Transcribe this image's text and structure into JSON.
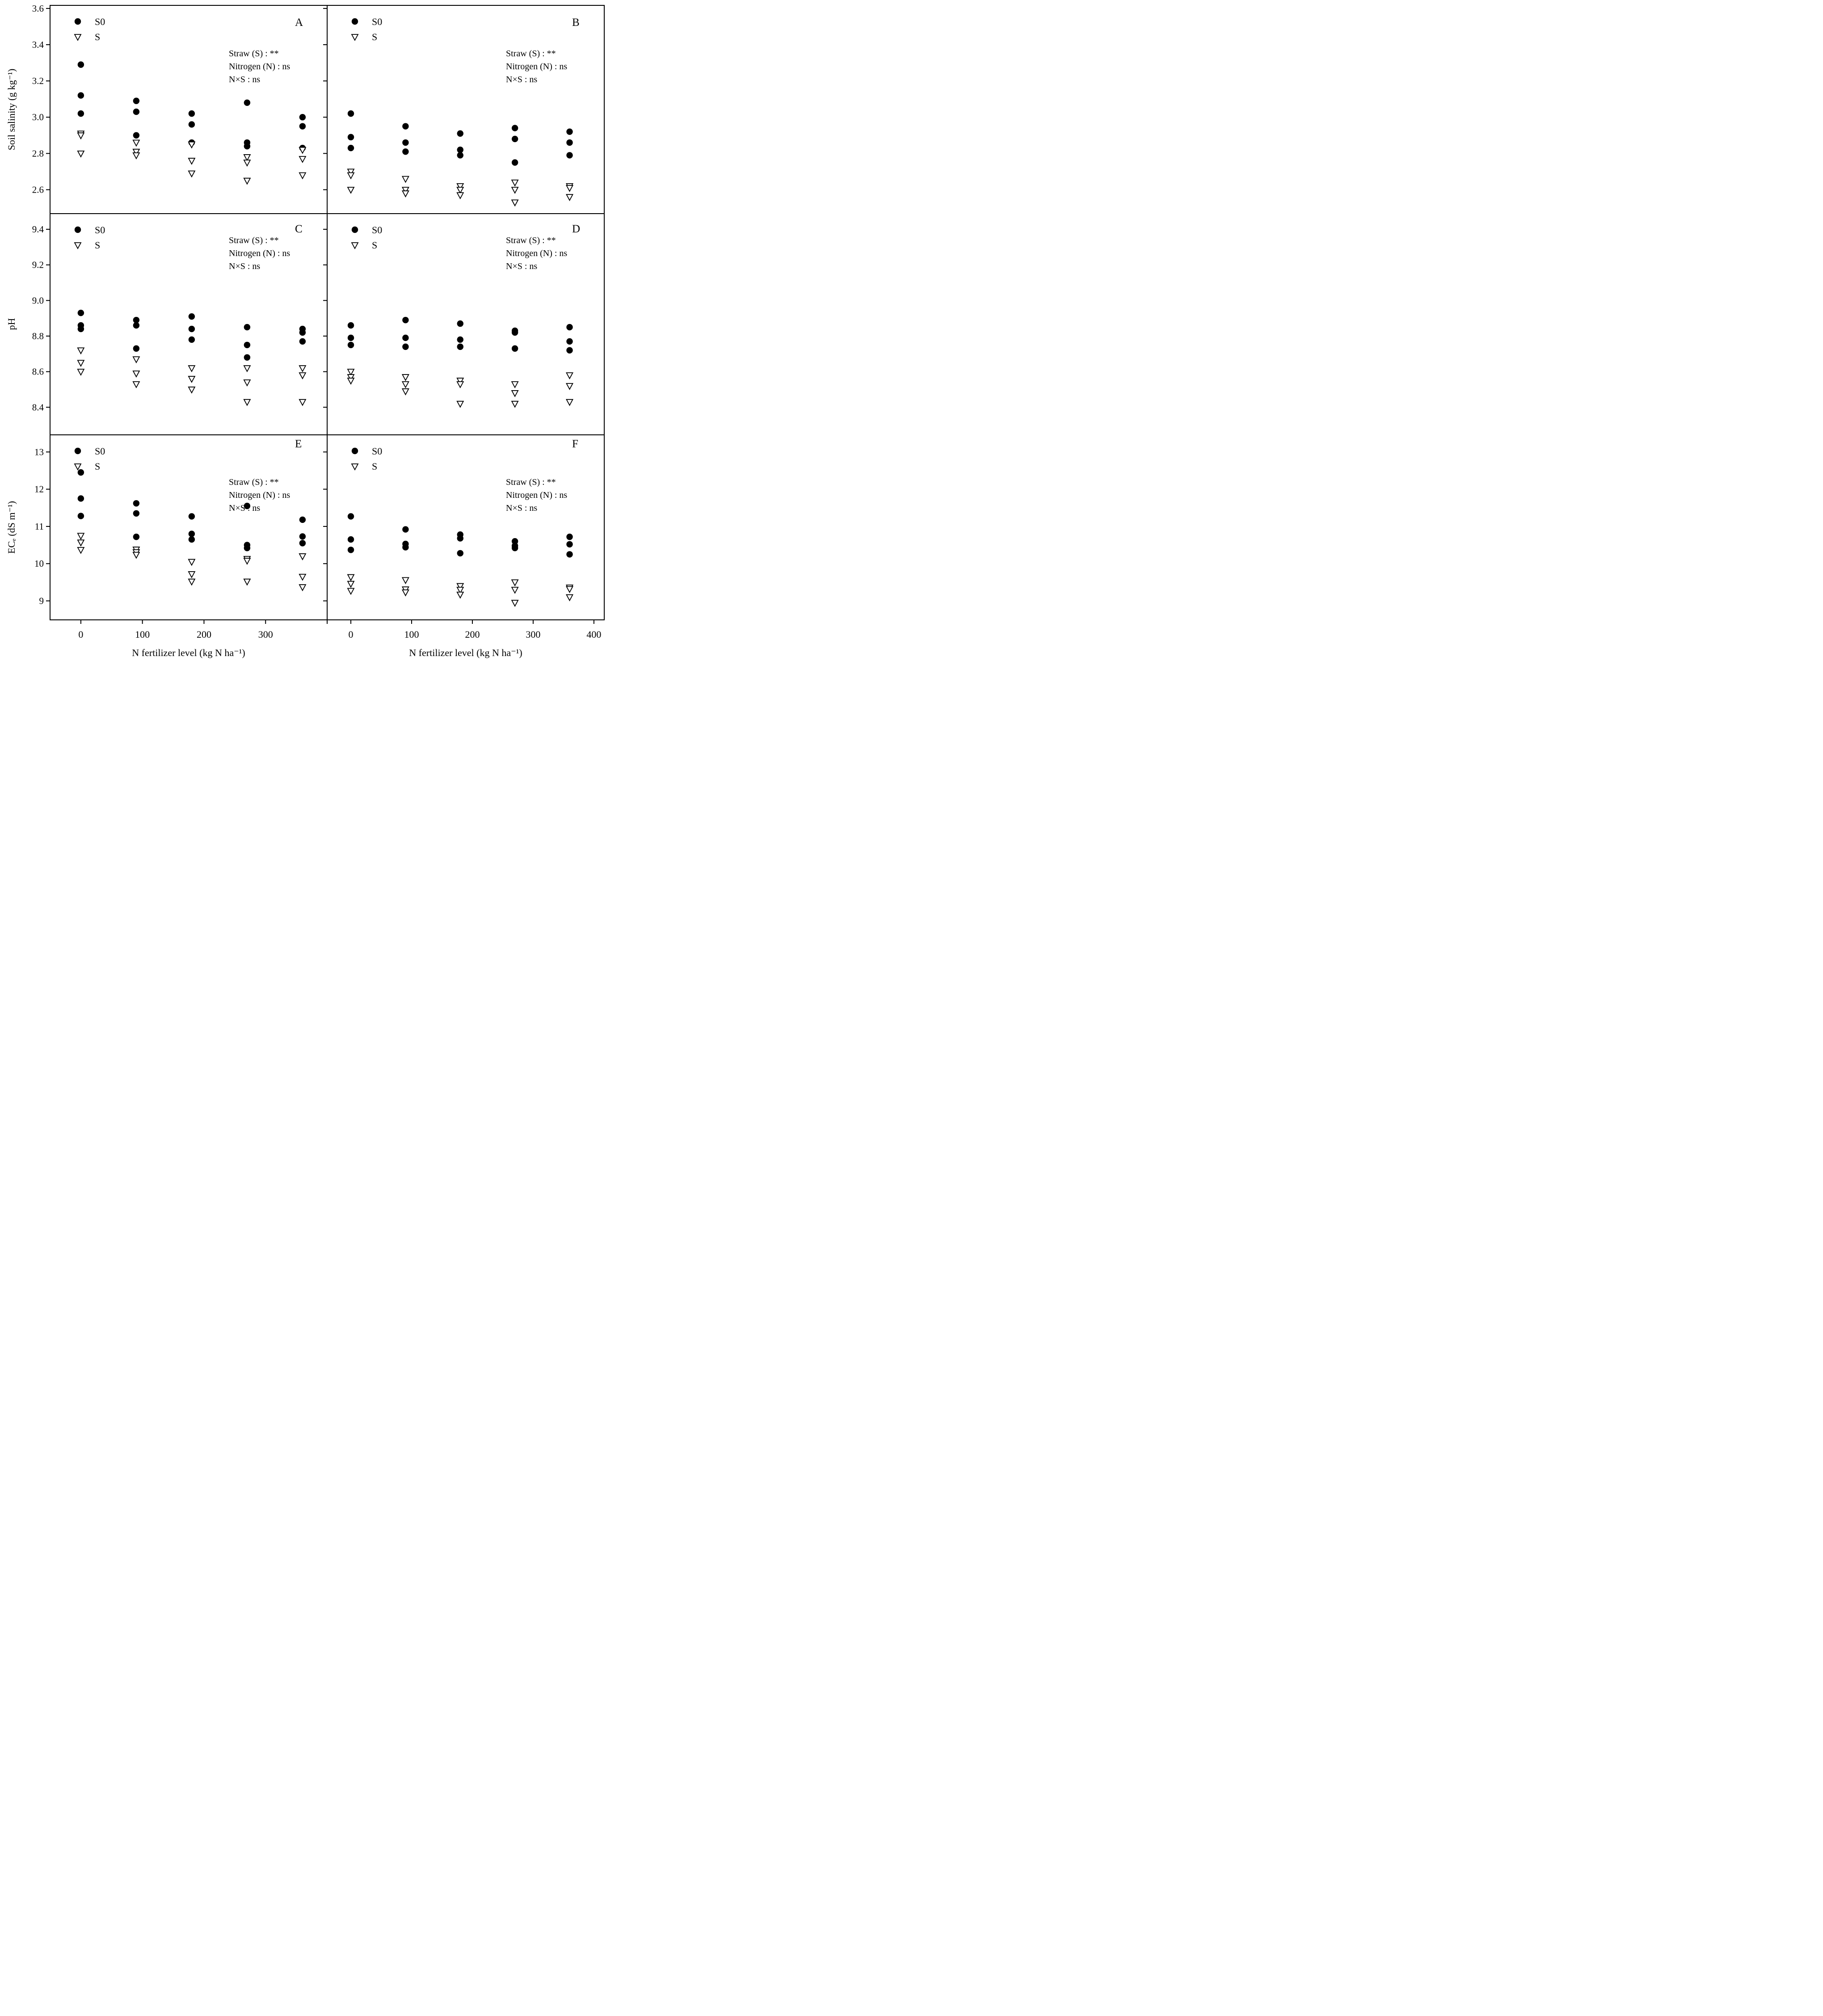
{
  "x_title": "N fertilizer level (kg N ha⁻¹)",
  "legend": {
    "s0_label": "S0",
    "s_label": "S"
  },
  "annotation_lines": [
    "Straw (S) : **",
    "Nitrogen (N) : ns",
    "N×S : ns"
  ],
  "chart_data": [
    {
      "type": "scatter",
      "panel": "A",
      "ylabel": "Soil salinity (g kg⁻¹)",
      "ylim": [
        2.468,
        3.617
      ],
      "yticks": [
        {
          "v": 3.6,
          "label": "3.6"
        },
        {
          "v": 3.4,
          "label": "3.4"
        },
        {
          "v": 3.2,
          "label": "3.2"
        },
        {
          "v": 3.0,
          "label": "3.0"
        },
        {
          "v": 2.8,
          "label": "2.8"
        },
        {
          "v": 2.6,
          "label": "2.6"
        }
      ],
      "xticks": [
        {
          "v": 0,
          "label": "0"
        },
        {
          "v": 100,
          "label": "100"
        },
        {
          "v": 200,
          "label": "200"
        },
        {
          "v": 300,
          "label": "300"
        },
        {
          "v": 400,
          "label": ""
        }
      ],
      "annotations": [
        "Straw (S) : **",
        "Nitrogen (N) : ns",
        "N×S : ns"
      ],
      "series": [
        {
          "name": "S0",
          "marker": "filled-circle",
          "points": [
            [
              0,
              3.29
            ],
            [
              0,
              3.12
            ],
            [
              0,
              3.02
            ],
            [
              90,
              3.09
            ],
            [
              90,
              3.03
            ],
            [
              90,
              2.9
            ],
            [
              180,
              3.02
            ],
            [
              180,
              2.96
            ],
            [
              180,
              2.86
            ],
            [
              270,
              3.08
            ],
            [
              270,
              2.86
            ],
            [
              270,
              2.84
            ],
            [
              360,
              3.0
            ],
            [
              360,
              2.95
            ],
            [
              360,
              2.83
            ]
          ]
        },
        {
          "name": "S",
          "marker": "open-triangle-down",
          "points": [
            [
              0,
              2.91
            ],
            [
              0,
              2.9
            ],
            [
              0,
              2.8
            ],
            [
              90,
              2.86
            ],
            [
              90,
              2.81
            ],
            [
              90,
              2.79
            ],
            [
              180,
              2.85
            ],
            [
              180,
              2.76
            ],
            [
              180,
              2.69
            ],
            [
              270,
              2.78
            ],
            [
              270,
              2.75
            ],
            [
              270,
              2.65
            ],
            [
              360,
              2.82
            ],
            [
              360,
              2.77
            ],
            [
              360,
              2.68
            ]
          ]
        }
      ]
    },
    {
      "type": "scatter",
      "panel": "B",
      "ylim": [
        2.468,
        3.617
      ],
      "yticks": [
        {
          "v": 3.6,
          "label": "3.6"
        },
        {
          "v": 3.4,
          "label": "3.4"
        },
        {
          "v": 3.2,
          "label": "3.2"
        },
        {
          "v": 3.0,
          "label": "3.0"
        },
        {
          "v": 2.8,
          "label": "2.8"
        },
        {
          "v": 2.6,
          "label": "2.6"
        }
      ],
      "xticks": [
        {
          "v": 0,
          "label": "0"
        },
        {
          "v": 100,
          "label": "100"
        },
        {
          "v": 200,
          "label": "200"
        },
        {
          "v": 300,
          "label": "300"
        },
        {
          "v": 400,
          "label": "400"
        }
      ],
      "annotations": [
        "Straw (S) : **",
        "Nitrogen (N) : ns",
        "N×S : ns"
      ],
      "series": [
        {
          "name": "S0",
          "marker": "filled-circle",
          "points": [
            [
              0,
              3.02
            ],
            [
              0,
              2.89
            ],
            [
              0,
              2.83
            ],
            [
              90,
              2.95
            ],
            [
              90,
              2.86
            ],
            [
              90,
              2.81
            ],
            [
              180,
              2.91
            ],
            [
              180,
              2.82
            ],
            [
              180,
              2.79
            ],
            [
              270,
              2.94
            ],
            [
              270,
              2.88
            ],
            [
              270,
              2.75
            ],
            [
              360,
              2.92
            ],
            [
              360,
              2.86
            ],
            [
              360,
              2.79
            ]
          ]
        },
        {
          "name": "S",
          "marker": "open-triangle-down",
          "points": [
            [
              0,
              2.7
            ],
            [
              0,
              2.68
            ],
            [
              0,
              2.6
            ],
            [
              90,
              2.66
            ],
            [
              90,
              2.6
            ],
            [
              90,
              2.58
            ],
            [
              180,
              2.62
            ],
            [
              180,
              2.6
            ],
            [
              180,
              2.57
            ],
            [
              270,
              2.64
            ],
            [
              270,
              2.6
            ],
            [
              270,
              2.53
            ],
            [
              360,
              2.62
            ],
            [
              360,
              2.61
            ],
            [
              360,
              2.56
            ]
          ]
        }
      ]
    },
    {
      "type": "scatter",
      "panel": "C",
      "ylabel": "pH",
      "ylim": [
        8.245,
        9.488
      ],
      "yticks": [
        {
          "v": 9.4,
          "label": "9.4"
        },
        {
          "v": 9.2,
          "label": "9.2"
        },
        {
          "v": 9.0,
          "label": "9.0"
        },
        {
          "v": 8.8,
          "label": "8.8"
        },
        {
          "v": 8.6,
          "label": "8.6"
        },
        {
          "v": 8.4,
          "label": "8.4"
        }
      ],
      "xticks": [
        {
          "v": 0,
          "label": "0"
        },
        {
          "v": 100,
          "label": "100"
        },
        {
          "v": 200,
          "label": "200"
        },
        {
          "v": 300,
          "label": "300"
        },
        {
          "v": 400,
          "label": ""
        }
      ],
      "annotations": [
        "Straw (S) : **",
        "Nitrogen (N) : ns",
        "N×S : ns"
      ],
      "series": [
        {
          "name": "S0",
          "marker": "filled-circle",
          "points": [
            [
              0,
              8.93
            ],
            [
              0,
              8.86
            ],
            [
              0,
              8.84
            ],
            [
              90,
              8.89
            ],
            [
              90,
              8.86
            ],
            [
              90,
              8.73
            ],
            [
              180,
              8.91
            ],
            [
              180,
              8.84
            ],
            [
              180,
              8.78
            ],
            [
              270,
              8.85
            ],
            [
              270,
              8.75
            ],
            [
              270,
              8.68
            ],
            [
              360,
              8.84
            ],
            [
              360,
              8.82
            ],
            [
              360,
              8.77
            ]
          ]
        },
        {
          "name": "S",
          "marker": "open-triangle-down",
          "points": [
            [
              0,
              8.72
            ],
            [
              0,
              8.65
            ],
            [
              0,
              8.6
            ],
            [
              90,
              8.67
            ],
            [
              90,
              8.59
            ],
            [
              90,
              8.53
            ],
            [
              180,
              8.62
            ],
            [
              180,
              8.56
            ],
            [
              180,
              8.5
            ],
            [
              270,
              8.62
            ],
            [
              270,
              8.54
            ],
            [
              270,
              8.43
            ],
            [
              360,
              8.62
            ],
            [
              360,
              8.58
            ],
            [
              360,
              8.43
            ]
          ]
        }
      ]
    },
    {
      "type": "scatter",
      "panel": "D",
      "ylim": [
        8.245,
        9.488
      ],
      "yticks": [
        {
          "v": 9.4,
          "label": "9.4"
        },
        {
          "v": 9.2,
          "label": "9.2"
        },
        {
          "v": 9.0,
          "label": "9.0"
        },
        {
          "v": 8.8,
          "label": "8.8"
        },
        {
          "v": 8.6,
          "label": "8.6"
        },
        {
          "v": 8.4,
          "label": "8.4"
        }
      ],
      "xticks": [
        {
          "v": 0,
          "label": "0"
        },
        {
          "v": 100,
          "label": "100"
        },
        {
          "v": 200,
          "label": "200"
        },
        {
          "v": 300,
          "label": "300"
        },
        {
          "v": 400,
          "label": "400"
        }
      ],
      "annotations": [
        "Straw (S) : **",
        "Nitrogen (N) : ns",
        "N×S : ns"
      ],
      "series": [
        {
          "name": "S0",
          "marker": "filled-circle",
          "points": [
            [
              0,
              8.86
            ],
            [
              0,
              8.79
            ],
            [
              0,
              8.75
            ],
            [
              90,
              8.89
            ],
            [
              90,
              8.79
            ],
            [
              90,
              8.74
            ],
            [
              180,
              8.87
            ],
            [
              180,
              8.78
            ],
            [
              180,
              8.74
            ],
            [
              270,
              8.83
            ],
            [
              270,
              8.82
            ],
            [
              270,
              8.73
            ],
            [
              360,
              8.85
            ],
            [
              360,
              8.77
            ],
            [
              360,
              8.72
            ]
          ]
        },
        {
          "name": "S",
          "marker": "open-triangle-down",
          "points": [
            [
              0,
              8.6
            ],
            [
              0,
              8.57
            ],
            [
              0,
              8.55
            ],
            [
              90,
              8.57
            ],
            [
              90,
              8.53
            ],
            [
              90,
              8.49
            ],
            [
              180,
              8.55
            ],
            [
              180,
              8.53
            ],
            [
              180,
              8.42
            ],
            [
              270,
              8.53
            ],
            [
              270,
              8.48
            ],
            [
              270,
              8.42
            ],
            [
              360,
              8.58
            ],
            [
              360,
              8.52
            ],
            [
              360,
              8.43
            ]
          ]
        }
      ]
    },
    {
      "type": "scatter",
      "panel": "E",
      "ylabel": "ECₑ (dS m⁻¹)",
      "ylim": [
        8.49,
        13.46
      ],
      "yticks": [
        {
          "v": 13,
          "label": "13"
        },
        {
          "v": 12,
          "label": "12"
        },
        {
          "v": 11,
          "label": "11"
        },
        {
          "v": 10,
          "label": "10"
        },
        {
          "v": 9,
          "label": "9"
        }
      ],
      "xticks": [
        {
          "v": 0,
          "label": "0"
        },
        {
          "v": 100,
          "label": "100"
        },
        {
          "v": 200,
          "label": "200"
        },
        {
          "v": 300,
          "label": "300"
        },
        {
          "v": 400,
          "label": ""
        }
      ],
      "annotations": [
        "Straw (S) : **",
        "Nitrogen (N) : ns",
        "N×S : ns"
      ],
      "series": [
        {
          "name": "S0",
          "marker": "filled-circle",
          "points": [
            [
              0,
              12.45
            ],
            [
              0,
              11.75
            ],
            [
              0,
              11.28
            ],
            [
              90,
              11.62
            ],
            [
              90,
              11.35
            ],
            [
              90,
              10.72
            ],
            [
              180,
              11.27
            ],
            [
              180,
              10.8
            ],
            [
              180,
              10.65
            ],
            [
              270,
              11.55
            ],
            [
              270,
              10.5
            ],
            [
              270,
              10.42
            ],
            [
              360,
              11.18
            ],
            [
              360,
              10.73
            ],
            [
              360,
              10.55
            ]
          ]
        },
        {
          "name": "S",
          "marker": "open-triangle-down",
          "points": [
            [
              0,
              10.75
            ],
            [
              0,
              10.57
            ],
            [
              0,
              10.37
            ],
            [
              90,
              10.38
            ],
            [
              90,
              10.31
            ],
            [
              90,
              10.24
            ],
            [
              180,
              10.05
            ],
            [
              180,
              9.72
            ],
            [
              180,
              9.52
            ],
            [
              270,
              10.13
            ],
            [
              270,
              10.08
            ],
            [
              270,
              9.52
            ],
            [
              360,
              10.2
            ],
            [
              360,
              9.65
            ],
            [
              360,
              9.37
            ]
          ]
        }
      ]
    },
    {
      "type": "scatter",
      "panel": "F",
      "ylim": [
        8.49,
        13.46
      ],
      "yticks": [
        {
          "v": 13,
          "label": "13"
        },
        {
          "v": 12,
          "label": "12"
        },
        {
          "v": 11,
          "label": "11"
        },
        {
          "v": 10,
          "label": "10"
        },
        {
          "v": 9,
          "label": "9"
        }
      ],
      "xticks": [
        {
          "v": 0,
          "label": "0"
        },
        {
          "v": 100,
          "label": "100"
        },
        {
          "v": 200,
          "label": "200"
        },
        {
          "v": 300,
          "label": "300"
        },
        {
          "v": 400,
          "label": "400"
        }
      ],
      "annotations": [
        "Straw (S) : **",
        "Nitrogen (N) : ns",
        "N×S : ns"
      ],
      "series": [
        {
          "name": "S0",
          "marker": "filled-circle",
          "points": [
            [
              0,
              11.27
            ],
            [
              0,
              10.65
            ],
            [
              0,
              10.37
            ],
            [
              90,
              10.92
            ],
            [
              90,
              10.53
            ],
            [
              90,
              10.44
            ],
            [
              180,
              10.78
            ],
            [
              180,
              10.68
            ],
            [
              180,
              10.28
            ],
            [
              270,
              10.6
            ],
            [
              270,
              10.48
            ],
            [
              270,
              10.42
            ],
            [
              360,
              10.72
            ],
            [
              360,
              10.52
            ],
            [
              360,
              10.25
            ]
          ]
        },
        {
          "name": "S",
          "marker": "open-triangle-down",
          "points": [
            [
              0,
              9.64
            ],
            [
              0,
              9.46
            ],
            [
              0,
              9.27
            ],
            [
              90,
              9.56
            ],
            [
              90,
              9.31
            ],
            [
              90,
              9.23
            ],
            [
              180,
              9.4
            ],
            [
              180,
              9.3
            ],
            [
              180,
              9.17
            ],
            [
              270,
              9.5
            ],
            [
              270,
              9.3
            ],
            [
              270,
              8.95
            ],
            [
              360,
              9.36
            ],
            [
              360,
              9.32
            ],
            [
              360,
              9.1
            ]
          ]
        }
      ]
    }
  ]
}
